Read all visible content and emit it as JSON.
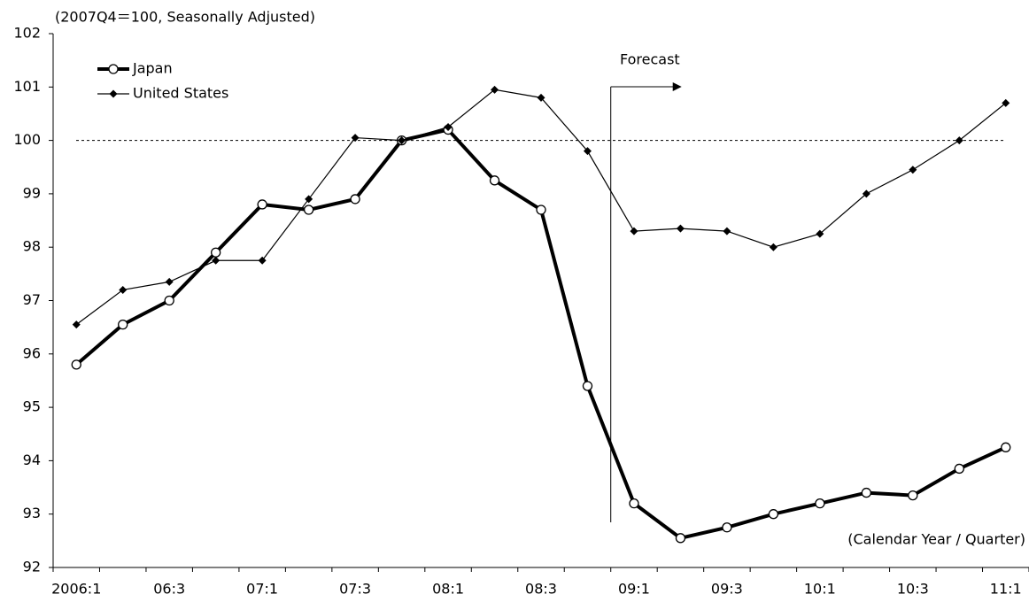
{
  "chart_data": {
    "type": "line",
    "y_axis_label": "(2007Q4＝100, Seasonally Adjusted)",
    "x_axis_label": "(Calendar Year / Quarter)",
    "annotation": "Forecast",
    "reference_line": 100,
    "categories": [
      "2006:1",
      null,
      "06:3",
      null,
      "07:1",
      null,
      "07:3",
      null,
      "08:1",
      null,
      "08:3",
      null,
      "09:1",
      null,
      "09:3",
      null,
      "10:1",
      null,
      "10:3",
      null,
      "11:1"
    ],
    "series": [
      {
        "name": "Japan",
        "color": "#000000",
        "marker": "circle",
        "values": [
          95.8,
          96.55,
          97.0,
          97.9,
          98.8,
          98.7,
          98.9,
          100.0,
          100.2,
          99.25,
          98.7,
          95.4,
          93.2,
          92.55,
          92.75,
          93.0,
          93.2,
          93.4,
          93.35,
          93.85,
          94.25
        ]
      },
      {
        "name": "United States",
        "color": "#000000",
        "marker": "diamond",
        "values": [
          96.55,
          97.2,
          97.35,
          97.75,
          97.75,
          98.9,
          100.05,
          100.0,
          100.25,
          100.95,
          100.8,
          99.8,
          98.3,
          98.35,
          98.3,
          98.0,
          98.25,
          99.0,
          99.45,
          100.0,
          100.7
        ]
      }
    ],
    "ylim": [
      92,
      102
    ],
    "yticks": [
      92,
      93,
      94,
      95,
      96,
      97,
      98,
      99,
      100,
      101,
      102
    ],
    "grid": false
  }
}
